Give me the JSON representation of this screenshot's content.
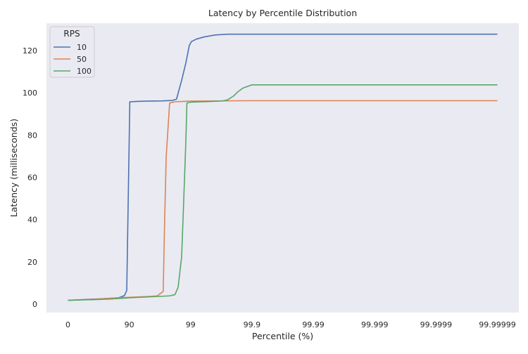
{
  "chart_data": {
    "type": "line",
    "title": "Latency by Percentile Distribution",
    "xlabel": "Percentile (%)",
    "ylabel": "Latency (milliseconds)",
    "x_scale": "log of 1/(1 - percentile/100), ticks labeled as percentiles",
    "x_range_percentile": [
      0,
      99.99999
    ],
    "xticks": [
      "0",
      "90",
      "99",
      "99.9",
      "99.99",
      "99.999",
      "99.9999",
      "99.99999"
    ],
    "ylim": [
      -4,
      133
    ],
    "yticks": [
      0,
      20,
      40,
      60,
      80,
      100,
      120
    ],
    "grid": false,
    "background": "#eaeaf2",
    "legend": {
      "title": "RPS",
      "placement": "top-left"
    },
    "series": [
      {
        "name": "10",
        "color": "#4c72b0",
        "points": [
          [
            0,
            1.8
          ],
          [
            50,
            2.2
          ],
          [
            75,
            2.6
          ],
          [
            85,
            3.0
          ],
          [
            88,
            4.0
          ],
          [
            89,
            6.5
          ],
          [
            90.2,
            95.8
          ],
          [
            92,
            95.9
          ],
          [
            93,
            96.0
          ],
          [
            95,
            96.1
          ],
          [
            97,
            96.2
          ],
          [
            98,
            96.4
          ],
          [
            98.3,
            97.0
          ],
          [
            98.6,
            106
          ],
          [
            98.8,
            114
          ],
          [
            98.95,
            122.5
          ],
          [
            99.03,
            124.3
          ],
          [
            99.2,
            125.5
          ],
          [
            99.4,
            126.5
          ],
          [
            99.6,
            127.4
          ],
          [
            99.75,
            127.8
          ],
          [
            99.99999,
            127.8
          ]
        ]
      },
      {
        "name": "50",
        "color": "#dd8452",
        "points": [
          [
            0,
            1.8
          ],
          [
            60,
            2.2
          ],
          [
            80,
            2.8
          ],
          [
            90,
            3.2
          ],
          [
            95,
            3.6
          ],
          [
            96.5,
            3.9
          ],
          [
            97.2,
            6.0
          ],
          [
            97.35,
            40
          ],
          [
            97.5,
            70
          ],
          [
            97.8,
            95.2
          ],
          [
            98.2,
            95.8
          ],
          [
            99,
            96.1
          ],
          [
            99.9,
            96.3
          ],
          [
            99.99999,
            96.3
          ]
        ]
      },
      {
        "name": "100",
        "color": "#55a868",
        "points": [
          [
            0,
            1.8
          ],
          [
            60,
            2.1
          ],
          [
            80,
            2.4
          ],
          [
            90,
            3.0
          ],
          [
            95,
            3.4
          ],
          [
            97.8,
            3.9
          ],
          [
            98.2,
            4.5
          ],
          [
            98.4,
            8.0
          ],
          [
            98.6,
            22.5
          ],
          [
            98.8,
            76.0
          ],
          [
            98.85,
            95.2
          ],
          [
            99,
            95.6
          ],
          [
            99.5,
            95.9
          ],
          [
            99.7,
            96.2
          ],
          [
            99.75,
            96.7
          ],
          [
            99.8,
            98.5
          ],
          [
            99.83,
            100.5
          ],
          [
            99.86,
            102.3
          ],
          [
            99.9,
            103.8
          ],
          [
            99.99999,
            103.8
          ]
        ]
      }
    ]
  }
}
